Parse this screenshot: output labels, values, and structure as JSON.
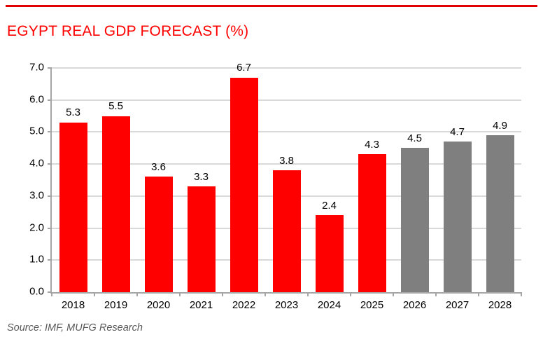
{
  "page": {
    "accent_line_color": "#E00000",
    "background_color": "#FFFFFF"
  },
  "chart_data": {
    "type": "bar",
    "title": "EGYPT REAL GDP FORECAST (%)",
    "title_color": "#FF0000",
    "categories": [
      "2018",
      "2019",
      "2020",
      "2021",
      "2022",
      "2023",
      "2024",
      "2025",
      "2026",
      "2027",
      "2028"
    ],
    "values": [
      5.3,
      5.5,
      3.6,
      3.3,
      6.7,
      3.8,
      2.4,
      4.3,
      4.5,
      4.7,
      4.9
    ],
    "value_labels": [
      "5.3",
      "5.5",
      "3.6",
      "3.3",
      "6.7",
      "3.8",
      "2.4",
      "4.3",
      "4.5",
      "4.7",
      "4.9"
    ],
    "forecast_start_index": 8,
    "xlabel": "",
    "ylabel": "",
    "ylim": [
      0,
      7
    ],
    "ytick_step": 1,
    "ytick_labels": [
      "0.0",
      "1.0",
      "2.0",
      "3.0",
      "4.0",
      "5.0",
      "6.0",
      "7.0"
    ],
    "grid": true,
    "legend": false,
    "colors": {
      "actual": "#FF0000",
      "forecast": "#7F7F7F"
    },
    "gridline_color": "#D9D9D9",
    "axis_color": "#A6A6A6",
    "label_color": "#000000"
  },
  "source_note": {
    "text": "Source: IMF, MUFG Research",
    "color": "#595959"
  }
}
